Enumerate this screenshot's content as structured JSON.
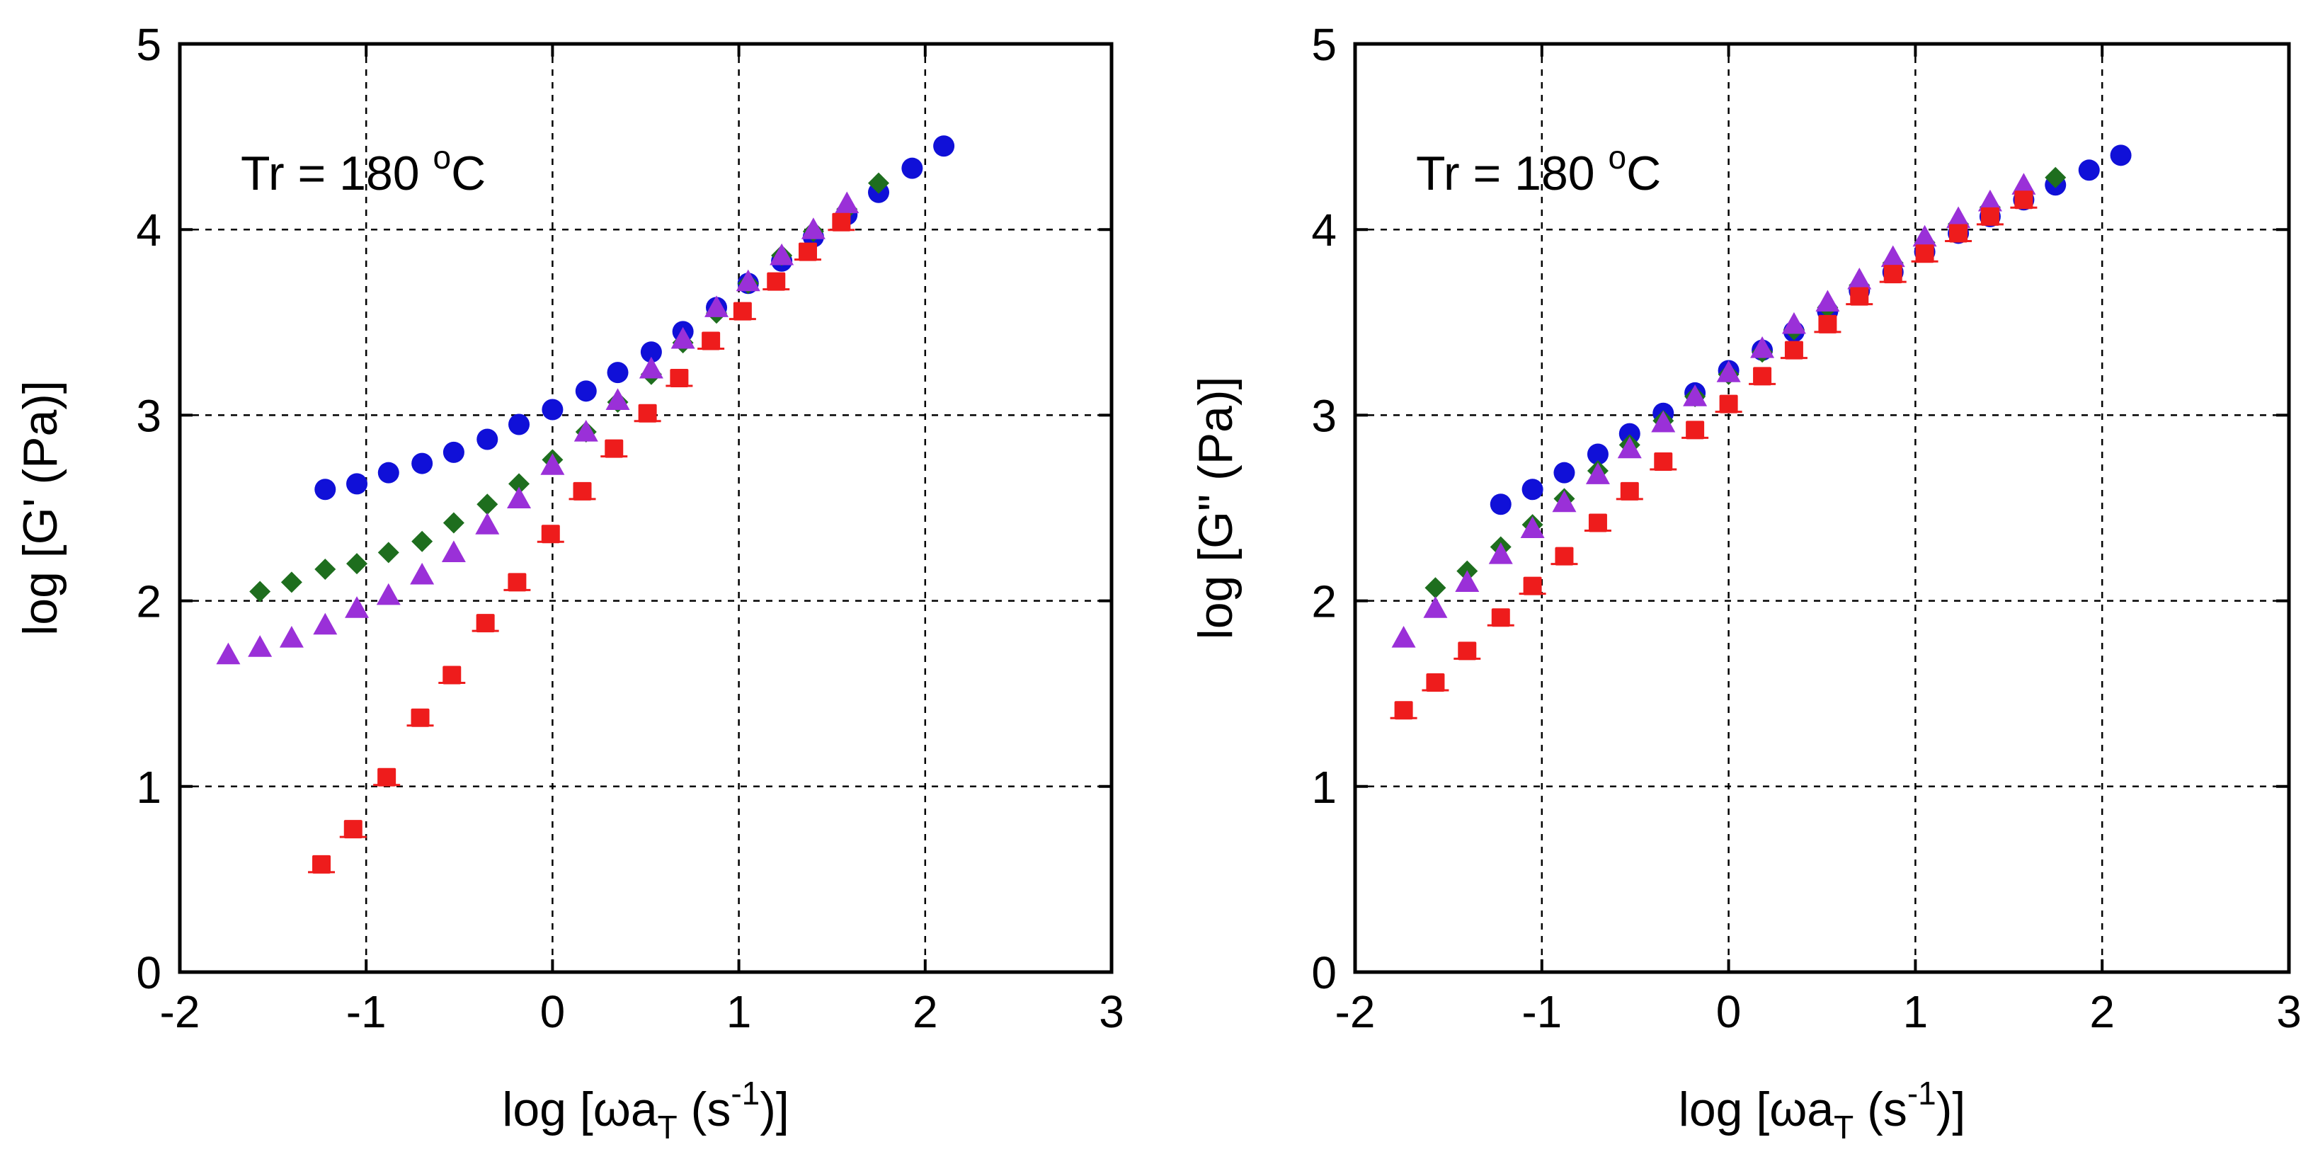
{
  "chart_data": [
    {
      "type": "scatter",
      "xlabel": "log [ωa_T (s^-1)]",
      "xlabel_parts": {
        "pre": "log [ωa",
        "sub": "T",
        "mid": " (s",
        "sup": "-1",
        "post": ")]"
      },
      "ylabel": "log [G' (Pa)]",
      "xlim": [
        -2,
        3
      ],
      "ylim": [
        0,
        5
      ],
      "xticks": [
        -2,
        -1,
        0,
        1,
        2,
        3
      ],
      "yticks": [
        0,
        1,
        2,
        3,
        4,
        5
      ],
      "xtick_labels": [
        "-2",
        "-1",
        "0",
        "1",
        "2",
        "3"
      ],
      "ytick_labels": [
        "0",
        "1",
        "2",
        "3",
        "4",
        "5"
      ],
      "grid": true,
      "annotation": {
        "text": "Tr = 180 ",
        "sup": "o",
        "post": "C"
      },
      "series": [
        {
          "name": "blue circles",
          "marker": "circle",
          "color": "#1010d8",
          "x": [
            -1.22,
            -1.05,
            -0.88,
            -0.7,
            -0.53,
            -0.35,
            -0.18,
            0.0,
            0.18,
            0.35,
            0.53,
            0.7,
            0.88,
            1.05,
            1.23,
            1.4,
            1.58,
            1.75,
            1.93,
            2.1
          ],
          "y": [
            2.6,
            2.63,
            2.69,
            2.74,
            2.8,
            2.87,
            2.95,
            3.03,
            3.13,
            3.23,
            3.34,
            3.45,
            3.58,
            3.71,
            3.83,
            3.96,
            4.08,
            4.2,
            4.33,
            4.45
          ]
        },
        {
          "name": "green diamonds",
          "marker": "diamond",
          "color": "#1e6e1e",
          "x": [
            -1.57,
            -1.4,
            -1.22,
            -1.05,
            -0.88,
            -0.7,
            -0.53,
            -0.35,
            -0.18,
            0.0,
            0.18,
            0.35,
            0.53,
            0.7,
            0.88,
            1.05,
            1.23,
            1.4,
            1.58,
            1.75
          ],
          "y": [
            2.05,
            2.1,
            2.17,
            2.2,
            2.26,
            2.32,
            2.42,
            2.52,
            2.63,
            2.76,
            2.91,
            3.07,
            3.22,
            3.39,
            3.55,
            3.71,
            3.86,
            3.99,
            4.11,
            4.25
          ]
        },
        {
          "name": "purple triangles",
          "marker": "triangle",
          "color": "#9a30d8",
          "x": [
            -1.74,
            -1.57,
            -1.4,
            -1.22,
            -1.05,
            -0.88,
            -0.7,
            -0.53,
            -0.35,
            -0.18,
            0.0,
            0.18,
            0.35,
            0.53,
            0.7,
            0.88,
            1.05,
            1.23,
            1.4,
            1.58
          ],
          "y": [
            1.71,
            1.75,
            1.8,
            1.87,
            1.96,
            2.03,
            2.14,
            2.26,
            2.41,
            2.55,
            2.73,
            2.91,
            3.08,
            3.25,
            3.41,
            3.58,
            3.72,
            3.86,
            4.0,
            4.14
          ]
        },
        {
          "name": "red squares",
          "marker": "square",
          "color": "#ee1c1c",
          "x": [
            -1.24,
            -1.07,
            -0.89,
            -0.71,
            -0.54,
            -0.36,
            -0.19,
            -0.01,
            0.16,
            0.33,
            0.51,
            0.68,
            0.85,
            1.02,
            1.2,
            1.37,
            1.55
          ],
          "y": [
            0.58,
            0.77,
            1.05,
            1.37,
            1.6,
            1.88,
            2.1,
            2.36,
            2.59,
            2.82,
            3.01,
            3.2,
            3.4,
            3.56,
            3.72,
            3.88,
            4.04
          ]
        }
      ]
    },
    {
      "type": "scatter",
      "xlabel": "log [ωa_T (s^-1)]",
      "xlabel_parts": {
        "pre": "log [ωa",
        "sub": "T",
        "mid": " (s",
        "sup": "-1",
        "post": ")]"
      },
      "ylabel": "log [G\" (Pa)]",
      "xlim": [
        -2,
        3
      ],
      "ylim": [
        0,
        5
      ],
      "xticks": [
        -2,
        -1,
        0,
        1,
        2,
        3
      ],
      "yticks": [
        0,
        1,
        2,
        3,
        4,
        5
      ],
      "xtick_labels": [
        "-2",
        "-1",
        "0",
        "1",
        "2",
        "3"
      ],
      "ytick_labels": [
        "0",
        "1",
        "2",
        "3",
        "4",
        "5"
      ],
      "grid": true,
      "annotation": {
        "text": "Tr = 180 ",
        "sup": "o",
        "post": "C"
      },
      "series": [
        {
          "name": "blue circles",
          "marker": "circle",
          "color": "#1010d8",
          "x": [
            -1.22,
            -1.05,
            -0.88,
            -0.7,
            -0.53,
            -0.35,
            -0.18,
            0.0,
            0.18,
            0.35,
            0.53,
            0.7,
            0.88,
            1.05,
            1.23,
            1.4,
            1.58,
            1.75,
            1.93,
            2.1
          ],
          "y": [
            2.52,
            2.6,
            2.69,
            2.79,
            2.9,
            3.01,
            3.12,
            3.24,
            3.35,
            3.45,
            3.56,
            3.67,
            3.77,
            3.88,
            3.98,
            4.07,
            4.16,
            4.24,
            4.32,
            4.4
          ]
        },
        {
          "name": "green diamonds",
          "marker": "diamond",
          "color": "#1e6e1e",
          "x": [
            -1.57,
            -1.4,
            -1.22,
            -1.05,
            -0.88,
            -0.7,
            -0.53,
            -0.35,
            -0.18,
            0.0,
            0.18,
            0.35,
            0.53,
            0.7,
            0.88,
            1.05,
            1.23,
            1.4,
            1.58,
            1.75
          ],
          "y": [
            2.07,
            2.16,
            2.29,
            2.41,
            2.55,
            2.7,
            2.84,
            2.97,
            3.1,
            3.22,
            3.34,
            3.46,
            3.58,
            3.7,
            3.82,
            3.93,
            4.03,
            4.12,
            4.2,
            4.28
          ]
        },
        {
          "name": "purple triangles",
          "marker": "triangle",
          "color": "#9a30d8",
          "x": [
            -1.74,
            -1.57,
            -1.4,
            -1.22,
            -1.05,
            -0.88,
            -0.7,
            -0.53,
            -0.35,
            -0.18,
            0.0,
            0.18,
            0.35,
            0.53,
            0.7,
            0.88,
            1.05,
            1.23,
            1.4,
            1.58
          ],
          "y": [
            1.8,
            1.96,
            2.1,
            2.25,
            2.39,
            2.53,
            2.68,
            2.82,
            2.96,
            3.1,
            3.23,
            3.36,
            3.49,
            3.61,
            3.73,
            3.85,
            3.96,
            4.06,
            4.15,
            4.24
          ]
        },
        {
          "name": "red squares",
          "marker": "square",
          "color": "#ee1c1c",
          "x": [
            -1.74,
            -1.57,
            -1.4,
            -1.22,
            -1.05,
            -0.88,
            -0.7,
            -0.53,
            -0.35,
            -0.18,
            0.0,
            0.18,
            0.35,
            0.53,
            0.7,
            0.88,
            1.05,
            1.23,
            1.4,
            1.58
          ],
          "y": [
            1.41,
            1.56,
            1.73,
            1.91,
            2.08,
            2.24,
            2.42,
            2.59,
            2.75,
            2.92,
            3.06,
            3.21,
            3.35,
            3.49,
            3.64,
            3.76,
            3.87,
            3.98,
            4.07,
            4.16
          ]
        }
      ]
    }
  ]
}
